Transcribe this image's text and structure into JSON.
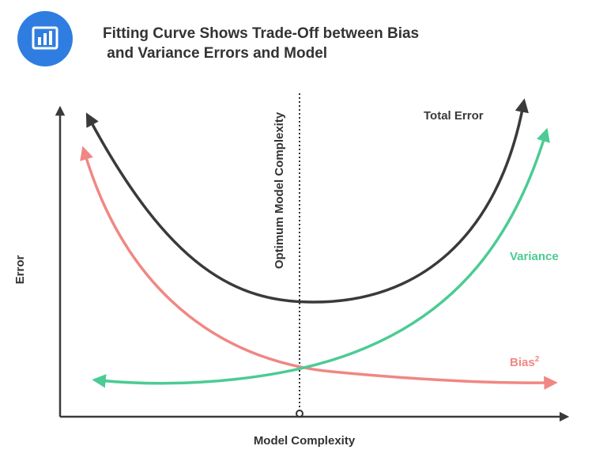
{
  "header": {
    "title_line1": "Fitting Curve Shows Trade-Off between Bias",
    "title_line2": " and Variance Errors and Model",
    "logo_icon": "bar-chart-icon"
  },
  "axes": {
    "x_label": "Model Complexity",
    "y_label": "Error"
  },
  "annotations": {
    "optimum_label": "Optimum Model Complexity"
  },
  "curves": {
    "total_error": {
      "label": "Total Error",
      "color": "#3a3a3a"
    },
    "variance": {
      "label": "Variance",
      "color": "#4ccb94"
    },
    "bias": {
      "label": "Bias",
      "superscript": "2",
      "color": "#f08783"
    }
  },
  "colors": {
    "title": "#333333",
    "logo_bg": "#2f7de1",
    "axis": "#3a3a3a"
  }
}
